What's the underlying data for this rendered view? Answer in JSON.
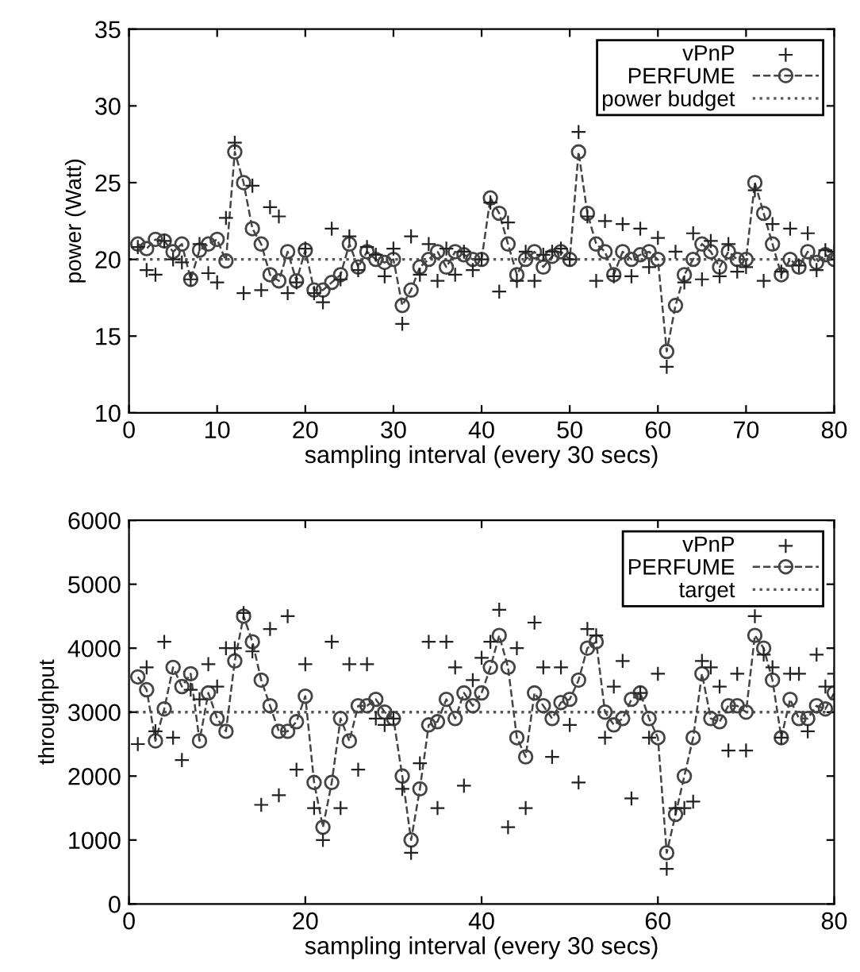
{
  "chart_data": [
    {
      "type": "line",
      "xlabel": "sampling interval (every 30 secs)",
      "ylabel": "power (Watt)",
      "xlim": [
        0,
        80
      ],
      "ylim": [
        10,
        35
      ],
      "xticks": [
        0,
        10,
        20,
        30,
        40,
        50,
        60,
        70,
        80
      ],
      "yticks": [
        10,
        15,
        20,
        25,
        30,
        35
      ],
      "legend": "top right",
      "grid": false,
      "x": [
        1,
        2,
        3,
        4,
        5,
        6,
        7,
        8,
        9,
        10,
        11,
        12,
        13,
        14,
        15,
        16,
        17,
        18,
        19,
        20,
        21,
        22,
        23,
        24,
        25,
        26,
        27,
        28,
        29,
        30,
        31,
        32,
        33,
        34,
        35,
        36,
        37,
        38,
        39,
        40,
        41,
        42,
        43,
        44,
        45,
        46,
        47,
        48,
        49,
        50,
        51,
        52,
        53,
        54,
        55,
        56,
        57,
        58,
        59,
        60,
        61,
        62,
        63,
        64,
        65,
        66,
        67,
        68,
        69,
        70,
        71,
        72,
        73,
        74,
        75,
        76,
        77,
        78,
        79,
        80
      ],
      "series": [
        {
          "name": "vPnP",
          "type": "scatter",
          "marker": "cross",
          "color": "#222222",
          "values": [
            20.8,
            19.3,
            19,
            21.2,
            20,
            19.8,
            18.7,
            21,
            19.1,
            18.5,
            22.7,
            27.6,
            17.8,
            24.8,
            18,
            23.4,
            22.8,
            17.8,
            18.5,
            20.7,
            17.8,
            17.2,
            22,
            18.7,
            21.5,
            19.3,
            20.8,
            20.3,
            18.9,
            20.7,
            15.8,
            21.5,
            19,
            21,
            18.6,
            20.7,
            19,
            20.5,
            19.3,
            20,
            23.7,
            17.9,
            22.4,
            18.6,
            20.5,
            18.6,
            20.3,
            20.5,
            20.7,
            20,
            28.3,
            22.8,
            18.6,
            22.5,
            18.9,
            22.3,
            18.9,
            22,
            19.5,
            21.4,
            13,
            20.5,
            18.5,
            21.7,
            18.7,
            21.2,
            18.9,
            21,
            19.2,
            19.5,
            24.5,
            18.6,
            22.3,
            19.2,
            22,
            19.6,
            21.7,
            19.3,
            20.6,
            20.5
          ]
        },
        {
          "name": "PERFUME",
          "marker": "circle",
          "line_style": "dashed",
          "color": "#444444",
          "values": [
            21,
            20.7,
            21.3,
            21.2,
            20.5,
            21,
            18.7,
            20.6,
            21,
            21.3,
            19.9,
            27,
            25,
            22,
            21,
            19,
            18.6,
            20.5,
            18.6,
            20.6,
            18,
            18,
            18.5,
            19,
            21,
            19.5,
            20.5,
            20,
            19.8,
            20,
            17,
            18,
            19.5,
            20,
            20.5,
            19.5,
            20.5,
            20.3,
            20,
            20,
            24,
            23,
            21,
            19,
            20,
            20.5,
            19.5,
            20.2,
            20.5,
            20,
            27,
            23,
            21,
            20.5,
            19,
            20.5,
            20,
            20.3,
            20.5,
            20,
            14,
            17,
            19,
            20,
            21,
            20.5,
            19.5,
            20.5,
            20,
            20,
            25,
            23,
            21,
            19,
            20,
            19.5,
            20.5,
            19.8,
            20.3,
            20
          ]
        }
      ],
      "ref_lines": [
        {
          "axis": "y",
          "value": 20,
          "label": "power budget",
          "color": "#555555",
          "line_style": "dotted"
        }
      ]
    },
    {
      "type": "line",
      "xlabel": "sampling interval (every 30 secs)",
      "ylabel": "throughput",
      "xlim": [
        0,
        80
      ],
      "ylim": [
        0,
        6000
      ],
      "xticks": [
        0,
        20,
        40,
        60,
        80
      ],
      "yticks": [
        0,
        1000,
        2000,
        3000,
        4000,
        5000,
        6000
      ],
      "legend": "top right",
      "grid": false,
      "x": [
        1,
        2,
        3,
        4,
        5,
        6,
        7,
        8,
        9,
        10,
        11,
        12,
        13,
        14,
        15,
        16,
        17,
        18,
        19,
        20,
        21,
        22,
        23,
        24,
        25,
        26,
        27,
        28,
        29,
        30,
        31,
        32,
        33,
        34,
        35,
        36,
        37,
        38,
        39,
        40,
        41,
        42,
        43,
        44,
        45,
        46,
        47,
        48,
        49,
        50,
        51,
        52,
        53,
        54,
        55,
        56,
        57,
        58,
        59,
        60,
        61,
        62,
        63,
        64,
        65,
        66,
        67,
        68,
        69,
        70,
        71,
        72,
        73,
        74,
        75,
        76,
        77,
        78,
        79,
        80
      ],
      "series": [
        {
          "name": "vPnP",
          "type": "scatter",
          "marker": "cross",
          "color": "#222222",
          "values": [
            2500,
            3700,
            2700,
            4100,
            2600,
            2250,
            3350,
            3200,
            3750,
            3400,
            4000,
            4000,
            4550,
            3950,
            1550,
            4300,
            1700,
            4500,
            2100,
            3750,
            1500,
            1000,
            4100,
            1500,
            3750,
            2100,
            3750,
            2900,
            2800,
            2900,
            1800,
            800,
            2200,
            4100,
            1500,
            4100,
            3700,
            1850,
            3500,
            3850,
            4100,
            4600,
            1200,
            4000,
            1500,
            4400,
            3700,
            2300,
            3700,
            2800,
            1900,
            4300,
            4200,
            2600,
            3400,
            3800,
            1650,
            3300,
            2600,
            3600,
            550,
            1500,
            1500,
            1600,
            3800,
            3700,
            3400,
            2400,
            3600,
            2400,
            4500,
            3900,
            3700,
            2600,
            3600,
            3600,
            2700,
            3900,
            3400,
            3600
          ]
        },
        {
          "name": "PERFUME",
          "marker": "circle",
          "line_style": "dashed",
          "color": "#444444",
          "values": [
            3550,
            3350,
            2550,
            3050,
            3700,
            3400,
            3600,
            2550,
            3300,
            2900,
            2700,
            3800,
            4500,
            4100,
            3500,
            3100,
            2700,
            2700,
            2850,
            3250,
            1900,
            1200,
            1900,
            2900,
            2550,
            3100,
            3100,
            3200,
            3000,
            2900,
            2000,
            1000,
            1800,
            2800,
            2850,
            3200,
            2900,
            3300,
            3100,
            3300,
            3700,
            4200,
            3700,
            2600,
            2300,
            3300,
            3100,
            2900,
            3150,
            3200,
            3500,
            4000,
            4100,
            3000,
            2800,
            2900,
            3200,
            3300,
            2900,
            2600,
            800,
            1400,
            2000,
            2600,
            3600,
            2900,
            2850,
            3100,
            3100,
            3000,
            4200,
            4000,
            3500,
            2600,
            3200,
            2900,
            2900,
            3100,
            3050,
            3300
          ]
        }
      ],
      "ref_lines": [
        {
          "axis": "y",
          "value": 3000,
          "label": "target",
          "color": "#555555",
          "line_style": "dotted"
        }
      ]
    }
  ]
}
